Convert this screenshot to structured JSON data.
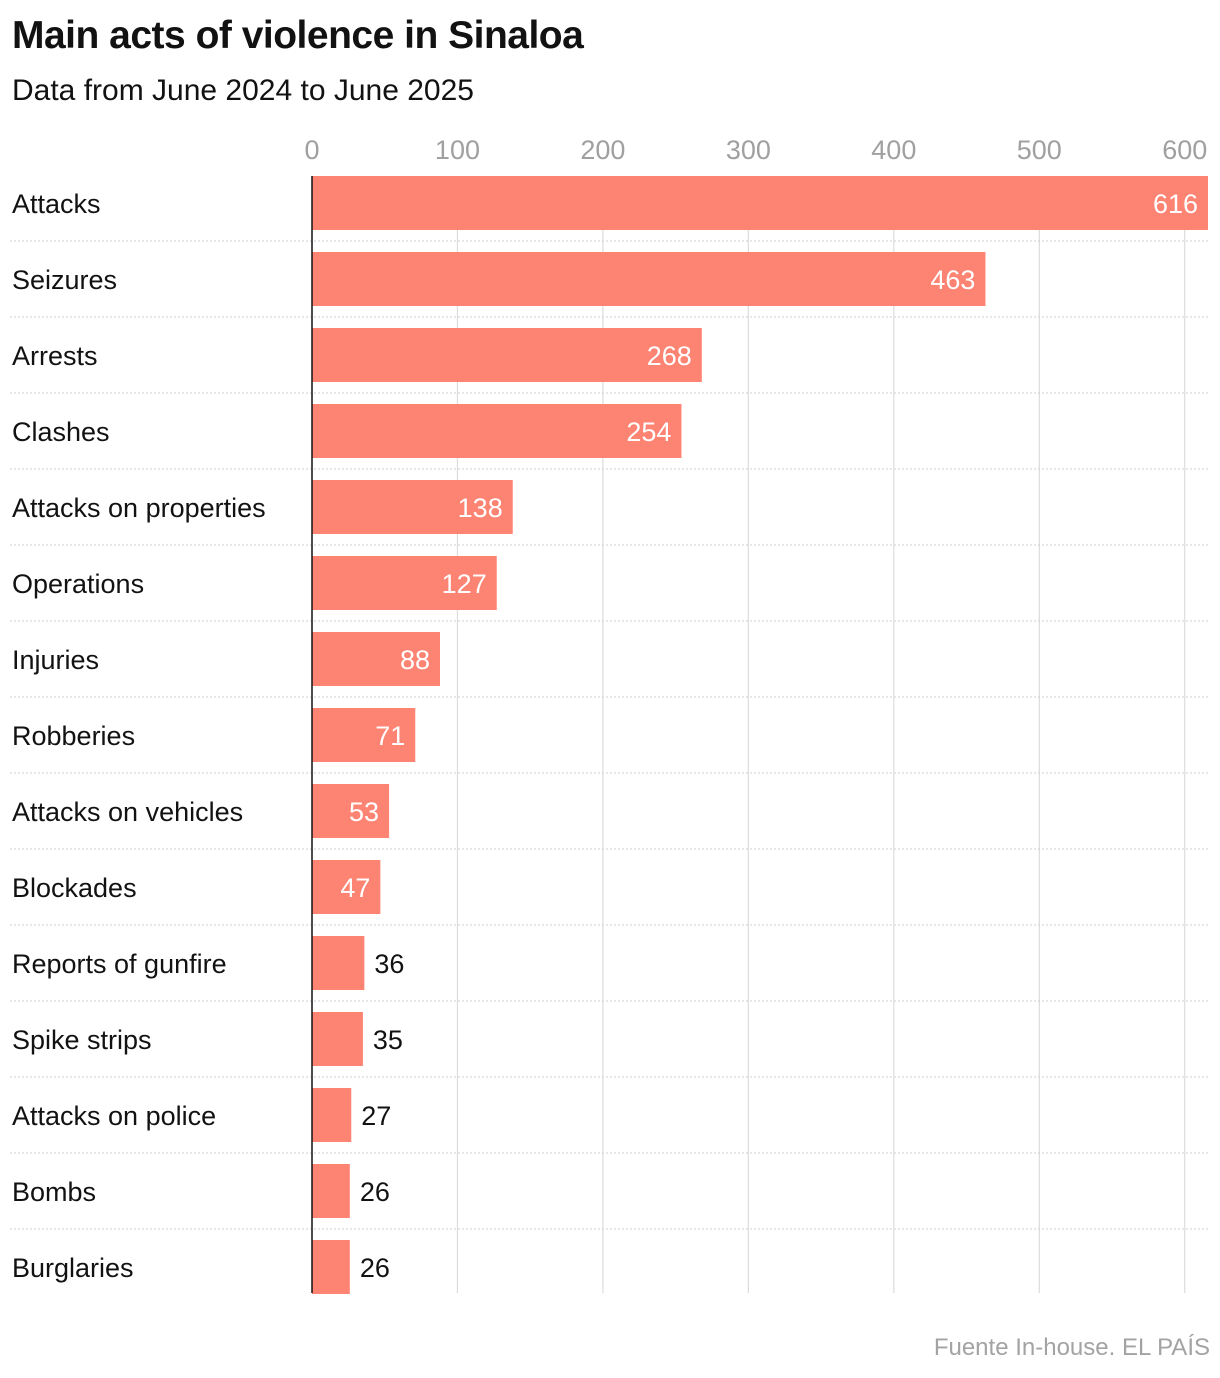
{
  "header": {
    "title": "Main acts of violence in Sinaloa",
    "subtitle": "Data from June 2024 to June 2025"
  },
  "footer": {
    "source": "Fuente In-house. EL PAÍS"
  },
  "colors": {
    "bar": "#fd8372",
    "grid": "#dcdcdc",
    "tick": "#a0a0a0",
    "label": "#121212"
  },
  "chart_data": {
    "type": "bar",
    "orientation": "horizontal",
    "title": "Main acts of violence in Sinaloa",
    "subtitle": "Data from June 2024 to June 2025",
    "categories": [
      "Attacks",
      "Seizures",
      "Arrests",
      "Clashes",
      "Attacks on properties",
      "Operations",
      "Injuries",
      "Robberies",
      "Attacks on vehicles",
      "Blockades",
      "Reports of gunfire",
      "Spike strips",
      "Attacks on police",
      "Bombs",
      "Burglaries"
    ],
    "values": [
      616,
      463,
      268,
      254,
      138,
      127,
      88,
      71,
      53,
      47,
      36,
      35,
      27,
      26,
      26
    ],
    "xticks": [
      0,
      100,
      200,
      300,
      400,
      500,
      600
    ],
    "xlim": [
      0,
      616
    ],
    "xlabel": "",
    "ylabel": "",
    "grid": true,
    "legend": "none"
  }
}
